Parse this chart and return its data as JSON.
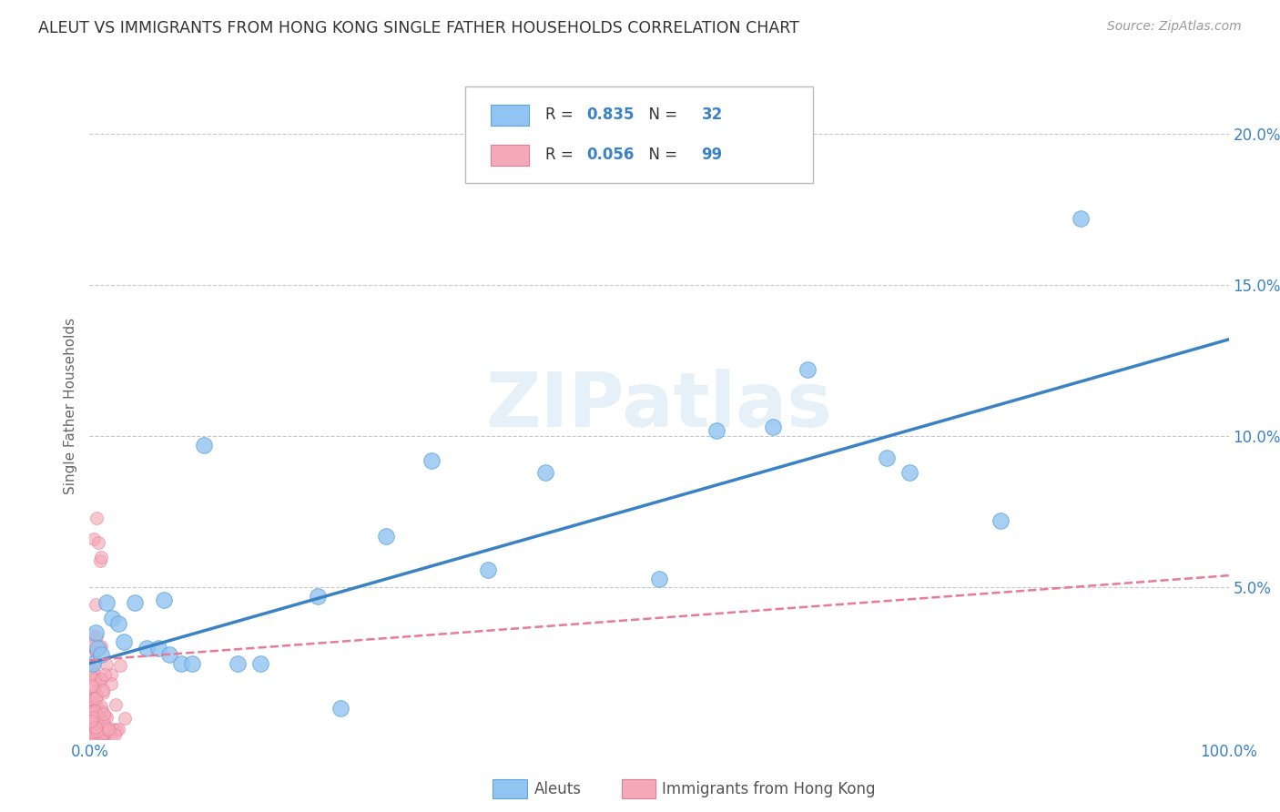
{
  "title": "ALEUT VS IMMIGRANTS FROM HONG KONG SINGLE FATHER HOUSEHOLDS CORRELATION CHART",
  "source": "Source: ZipAtlas.com",
  "ylabel": "Single Father Households",
  "xlim": [
    0,
    1.0
  ],
  "ylim": [
    0,
    0.22
  ],
  "xticks": [
    0.0,
    1.0
  ],
  "xticklabels": [
    "0.0%",
    "100.0%"
  ],
  "yticks": [
    0.0,
    0.05,
    0.1,
    0.15,
    0.2
  ],
  "yticklabels": [
    "",
    "5.0%",
    "10.0%",
    "15.0%",
    "20.0%"
  ],
  "aleuts_color": "#91c4f2",
  "aleuts_edge_color": "#5ba3d9",
  "hk_color": "#f4a9b8",
  "hk_edge_color": "#e87a96",
  "aleuts_R": 0.835,
  "aleuts_N": 32,
  "hk_R": 0.056,
  "hk_N": 99,
  "aleuts_line_color": "#3b82c4",
  "hk_line_color": "#e87a96",
  "background_color": "#ffffff",
  "grid_color": "#c8c8c8",
  "title_color": "#333333",
  "axis_label_color": "#666666",
  "tick_color": "#3b82c4",
  "watermark": "ZIPatlas",
  "legend_label_1": "Aleuts",
  "legend_label_2": "Immigrants from Hong Kong",
  "aleuts_x": [
    0.003,
    0.005,
    0.007,
    0.01,
    0.015,
    0.02,
    0.025,
    0.03,
    0.04,
    0.05,
    0.06,
    0.065,
    0.07,
    0.08,
    0.09,
    0.1,
    0.13,
    0.15,
    0.2,
    0.22,
    0.26,
    0.3,
    0.35,
    0.4,
    0.5,
    0.55,
    0.6,
    0.63,
    0.7,
    0.72,
    0.8,
    0.87
  ],
  "aleuts_y": [
    0.025,
    0.035,
    0.03,
    0.028,
    0.045,
    0.04,
    0.038,
    0.032,
    0.045,
    0.03,
    0.03,
    0.046,
    0.028,
    0.025,
    0.025,
    0.097,
    0.025,
    0.025,
    0.047,
    0.01,
    0.067,
    0.092,
    0.056,
    0.088,
    0.053,
    0.102,
    0.103,
    0.122,
    0.093,
    0.088,
    0.072,
    0.172
  ],
  "aleuts_line_x0": 0.0,
  "aleuts_line_y0": 0.025,
  "aleuts_line_x1": 1.0,
  "aleuts_line_y1": 0.132,
  "hk_line_x0": 0.0,
  "hk_line_y0": 0.026,
  "hk_line_x1": 1.0,
  "hk_line_y1": 0.054
}
